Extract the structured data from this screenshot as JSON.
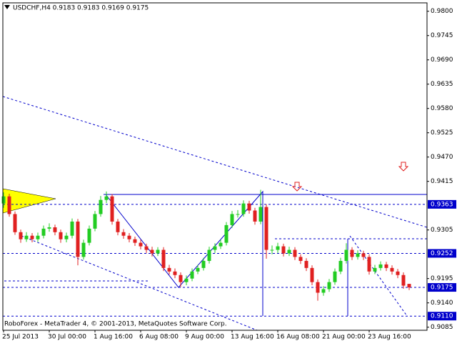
{
  "chart_data": {
    "type": "candlestick",
    "title": "USDCHF,H4  0.9183 0.9183 0.9169 0.9175",
    "footer": "RoboForex - MetaTrader 4, © 2001-2013, MetaQuotes Software Corp.",
    "categories": [
      "25 Jul 2013",
      null,
      null,
      null,
      null,
      null,
      null,
      null,
      "30 Jul 00:00",
      null,
      null,
      null,
      null,
      null,
      null,
      null,
      "1 Aug 16:00",
      null,
      null,
      null,
      null,
      null,
      null,
      null,
      "6 Aug 08:00",
      null,
      null,
      null,
      null,
      null,
      null,
      null,
      "9 Aug 00:00",
      null,
      null,
      null,
      null,
      null,
      null,
      null,
      "13 Aug 16:00",
      null,
      null,
      null,
      null,
      null,
      null,
      null,
      "16 Aug 08:00",
      null,
      null,
      null,
      null,
      null,
      null,
      null,
      "21 Aug 00:00",
      null,
      null,
      null,
      null,
      null,
      null,
      null,
      "23 Aug 16:00",
      null,
      null,
      null,
      null,
      null,
      null,
      null
    ],
    "open": [
      0.9365,
      0.9381,
      0.9341,
      0.93,
      0.9284,
      0.9292,
      0.9284,
      0.9292,
      0.9308,
      0.9311,
      0.93,
      0.9284,
      0.9292,
      0.9324,
      0.9244,
      0.9276,
      0.9308,
      0.9341,
      0.9373,
      0.9381,
      0.9324,
      0.93,
      0.9292,
      0.9284,
      0.9276,
      0.9268,
      0.926,
      0.9252,
      0.926,
      0.9219,
      0.9211,
      0.9203,
      0.9187,
      0.9195,
      0.9211,
      0.9219,
      0.9235,
      0.926,
      0.9268,
      0.9276,
      0.9316,
      0.9341,
      0.9341,
      0.9365,
      0.9349,
      0.9324,
      0.9357,
      0.926,
      0.926,
      0.9268,
      0.9252,
      0.926,
      0.9244,
      0.9235,
      0.9219,
      0.9187,
      0.9163,
      0.9171,
      0.9187,
      0.9211,
      0.9235,
      0.926,
      0.9244,
      0.9252,
      0.9244,
      0.9211,
      0.9219,
      0.9227,
      0.9219,
      0.9211,
      0.9203,
      0.9183
    ],
    "high": [
      0.939,
      0.9387,
      0.9347,
      0.9306,
      0.93,
      0.9298,
      0.9299,
      0.9315,
      0.932,
      0.9317,
      0.9306,
      0.9299,
      0.9331,
      0.933,
      0.9283,
      0.9315,
      0.9348,
      0.9382,
      0.9392,
      0.9386,
      0.933,
      0.9307,
      0.9298,
      0.929,
      0.9283,
      0.9274,
      0.9267,
      0.9266,
      0.9266,
      0.9226,
      0.9218,
      0.9209,
      0.9202,
      0.9218,
      0.9226,
      0.9242,
      0.9267,
      0.9275,
      0.9283,
      0.9323,
      0.9348,
      0.935,
      0.9372,
      0.9371,
      0.9355,
      0.9396,
      0.9363,
      0.927,
      0.9276,
      0.9274,
      0.9267,
      0.9266,
      0.925,
      0.9241,
      0.9225,
      0.9193,
      0.9178,
      0.9194,
      0.9218,
      0.9242,
      0.9275,
      0.9266,
      0.9259,
      0.9258,
      0.925,
      0.9226,
      0.9234,
      0.9233,
      0.9225,
      0.9217,
      0.9209,
      0.9183
    ],
    "low": [
      0.9355,
      0.9335,
      0.9294,
      0.9276,
      0.9278,
      0.9277,
      0.9278,
      0.9286,
      0.9301,
      0.9293,
      0.9276,
      0.9277,
      0.9286,
      0.9225,
      0.9238,
      0.927,
      0.9302,
      0.9335,
      0.9366,
      0.9317,
      0.9293,
      0.9285,
      0.9277,
      0.9269,
      0.9261,
      0.9253,
      0.9245,
      0.9246,
      0.9212,
      0.9204,
      0.9196,
      0.9176,
      0.918,
      0.9189,
      0.9205,
      0.9213,
      0.9229,
      0.9253,
      0.9262,
      0.927,
      0.931,
      0.9333,
      0.9335,
      0.9342,
      0.9317,
      0.9318,
      0.924,
      0.925,
      0.9253,
      0.9245,
      0.9246,
      0.9237,
      0.9228,
      0.9212,
      0.918,
      0.9145,
      0.9156,
      0.9165,
      0.9181,
      0.9205,
      0.9229,
      0.9237,
      0.9238,
      0.9237,
      0.9204,
      0.9205,
      0.9213,
      0.9212,
      0.9204,
      0.9196,
      0.9172,
      0.9169
    ],
    "close": [
      0.9381,
      0.9341,
      0.93,
      0.9284,
      0.9292,
      0.9284,
      0.9292,
      0.9308,
      0.9311,
      0.93,
      0.9284,
      0.9292,
      0.9324,
      0.9244,
      0.9276,
      0.9308,
      0.9341,
      0.9373,
      0.9381,
      0.9324,
      0.93,
      0.9292,
      0.9284,
      0.9276,
      0.9268,
      0.926,
      0.9252,
      0.926,
      0.9219,
      0.9211,
      0.9203,
      0.9187,
      0.9195,
      0.9211,
      0.9219,
      0.9235,
      0.926,
      0.9268,
      0.9276,
      0.9316,
      0.9341,
      0.9341,
      0.9365,
      0.9349,
      0.9324,
      0.9357,
      0.926,
      0.926,
      0.9268,
      0.9252,
      0.926,
      0.9244,
      0.9235,
      0.9219,
      0.9187,
      0.9163,
      0.9171,
      0.9187,
      0.9211,
      0.9235,
      0.926,
      0.9244,
      0.9252,
      0.9244,
      0.9211,
      0.9219,
      0.9227,
      0.9219,
      0.9211,
      0.9203,
      0.9179,
      0.9175
    ],
    "up_color": "#22cc22",
    "down_color": "#e02020",
    "ylim": [
      0.9078,
      0.9819
    ],
    "yticks": [
      {
        "value": 0.98,
        "label": "0.9800"
      },
      0.9745,
      {
        "value": 0.969,
        "label": "0.9690"
      },
      0.9635,
      {
        "value": 0.958,
        "label": "0.9580"
      },
      0.9525,
      {
        "value": 0.947,
        "label": "0.9470"
      },
      0.9415,
      {
        "value": 0.9305,
        "label": "0.9305"
      },
      0.9195,
      {
        "value": 0.914,
        "label": "0.9140"
      },
      0.9085
    ],
    "levels": [
      0.9363,
      0.9252,
      0.9175,
      {
        "value": 0.911,
        "label": "0.9110"
      }
    ],
    "level_color": "#0000cc"
  }
}
